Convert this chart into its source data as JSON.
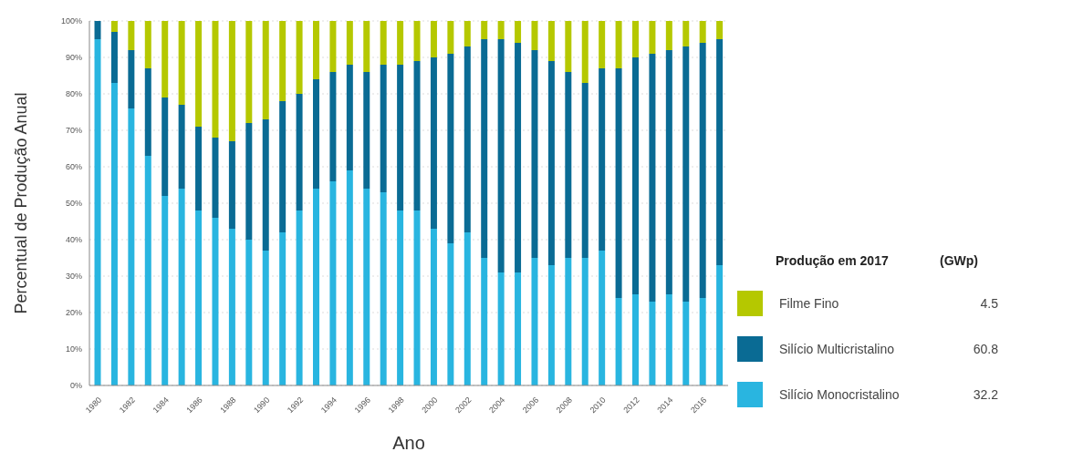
{
  "chart_data": {
    "type": "bar",
    "stacked": true,
    "ylabel": "Percentual  de Produção Anual",
    "xlabel": "Ano",
    "legend_title": "Produção em 2017",
    "legend": "right",
    "grid": "y",
    "categories": [
      "1980",
      null,
      "1982",
      null,
      "1984",
      null,
      "1986",
      null,
      "1988",
      null,
      "1990",
      null,
      "1992",
      null,
      "1994",
      null,
      "1996",
      null,
      "1998",
      null,
      "2000",
      null,
      "2002",
      null,
      "2004",
      null,
      "2006",
      null,
      "2008",
      null,
      "2010",
      null,
      "2012",
      null,
      "2014",
      null,
      "2016",
      null
    ],
    "ylim": [
      0,
      100
    ],
    "yticks": [
      {
        "value": 0,
        "label": "0%"
      },
      {
        "value": 10,
        "label": "10%"
      },
      {
        "value": 20,
        "label": "20%"
      },
      {
        "value": 30,
        "label": "30%"
      },
      {
        "value": 40,
        "label": "40%"
      },
      {
        "value": 50,
        "label": "50%"
      },
      {
        "value": 60,
        "label": "60%"
      },
      {
        "value": 70,
        "label": "70%"
      },
      {
        "value": 80,
        "label": "80%"
      },
      {
        "value": 90,
        "label": "90%"
      },
      {
        "value": 100,
        "label": "100%"
      }
    ],
    "series": [
      {
        "name": "Silício Monocristalino",
        "color": "#29b5e0",
        "values": [
          95,
          83,
          76,
          63,
          52,
          54,
          48,
          46,
          43,
          40,
          37,
          42,
          48,
          54,
          56,
          59,
          54,
          53,
          48,
          48,
          43,
          39,
          42,
          35,
          31,
          31,
          35,
          33,
          35,
          35,
          37,
          24,
          25,
          23,
          25,
          23,
          24,
          33
        ]
      },
      {
        "name": "Silício Multicristalino",
        "color": "#0a6b94",
        "values": [
          5,
          14,
          16,
          24,
          27,
          23,
          23,
          22,
          24,
          32,
          36,
          36,
          32,
          30,
          30,
          29,
          32,
          35,
          40,
          41,
          47,
          52,
          51,
          60,
          64,
          63,
          57,
          56,
          51,
          48,
          50,
          63,
          65,
          68,
          67,
          70,
          70,
          62
        ]
      },
      {
        "name": "Filme Fino",
        "color": "#b5c800",
        "values": [
          0,
          3,
          8,
          13,
          21,
          23,
          29,
          32,
          33,
          28,
          27,
          22,
          20,
          16,
          14,
          12,
          14,
          12,
          12,
          11,
          10,
          9,
          7,
          5,
          5,
          6,
          8,
          11,
          14,
          17,
          13,
          13,
          10,
          9,
          8,
          7,
          6,
          5
        ]
      }
    ],
    "annotations": [
      "(GWp)",
      "32.2",
      "60.8",
      "4.5"
    ]
  }
}
